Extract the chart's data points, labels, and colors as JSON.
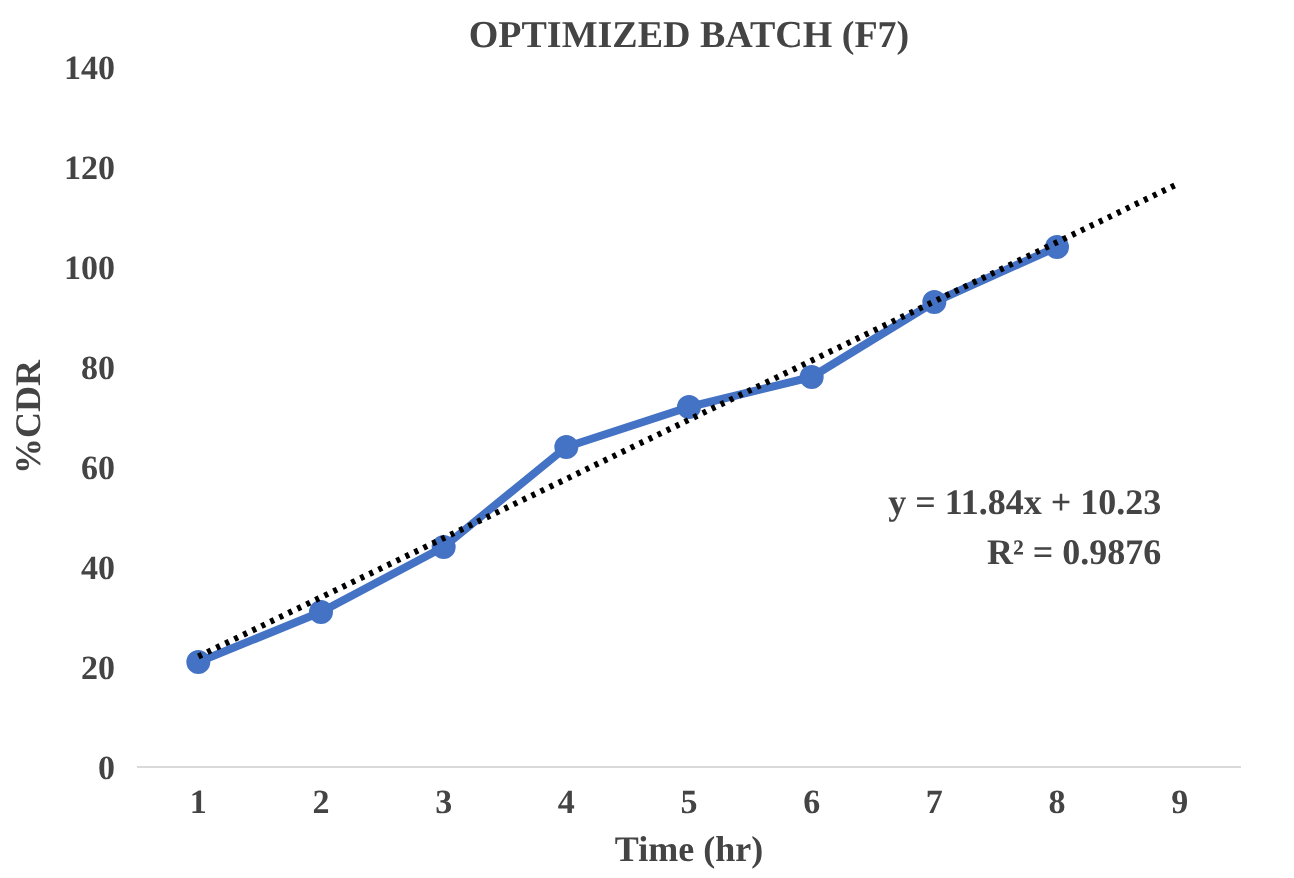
{
  "chart_data": {
    "type": "line",
    "title": "OPTIMIZED BATCH (F7)",
    "xlabel": "Time (hr)",
    "ylabel": "%CDR",
    "x": [
      1,
      2,
      3,
      4,
      5,
      6,
      7,
      8
    ],
    "series": [
      {
        "color": "#4472c4",
        "values": [
          21,
          31,
          44,
          64,
          72,
          78,
          93,
          104
        ],
        "marker": "circle",
        "line_style": "solid"
      },
      {
        "type": "line",
        "color": "#000000",
        "x": [
          1,
          9
        ],
        "values": [
          22.1,
          116.8
        ],
        "marker": "none",
        "line_style": "dotted"
      }
    ],
    "xlim": [
      0.5,
      9.5
    ],
    "xticks": [
      1,
      2,
      3,
      4,
      5,
      6,
      7,
      8,
      9
    ],
    "ylim": [
      0,
      140
    ],
    "yticks": [
      0,
      20,
      40,
      60,
      80,
      100,
      120,
      140
    ],
    "grid": false,
    "annotations": [
      "y = 11.84x + 10.23",
      "R² = 0.9876"
    ]
  }
}
